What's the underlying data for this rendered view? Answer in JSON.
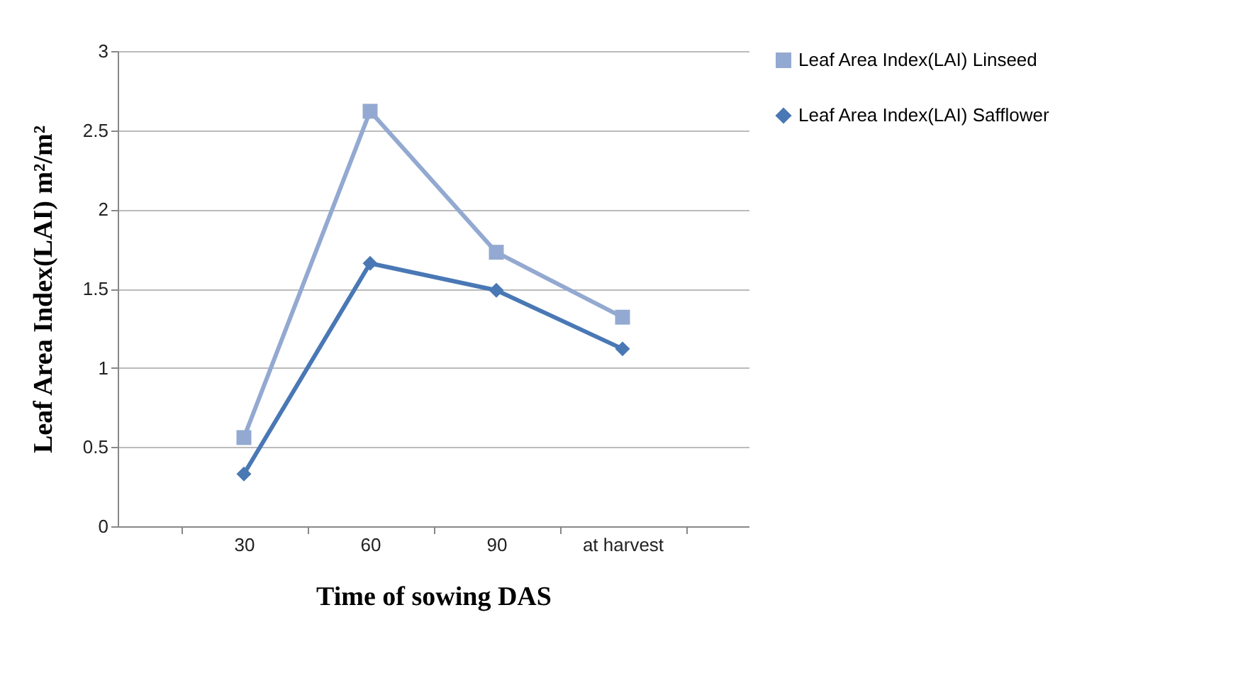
{
  "chart_data": {
    "type": "line",
    "xlabel": "Time of sowing DAS",
    "ylabel": "Leaf  Area Index(LAI) m²/m²",
    "categories": [
      "30",
      "60",
      "90",
      "at harvest"
    ],
    "ylim": [
      0,
      3
    ],
    "yticks": [
      0,
      0.5,
      1,
      1.5,
      2,
      2.5,
      3
    ],
    "grid": "y",
    "legend": "right",
    "line_style": "solid",
    "series": [
      {
        "name": "Leaf Area Index(LAI) Linseed",
        "color": "#93a9d1",
        "marker": "square",
        "values": [
          0.56,
          2.62,
          1.73,
          1.32
        ]
      },
      {
        "name": "Leaf Area Index(LAI) Safflower",
        "color": "#4a78b5",
        "marker": "diamond",
        "values": [
          0.33,
          1.66,
          1.49,
          1.12
        ]
      }
    ]
  }
}
